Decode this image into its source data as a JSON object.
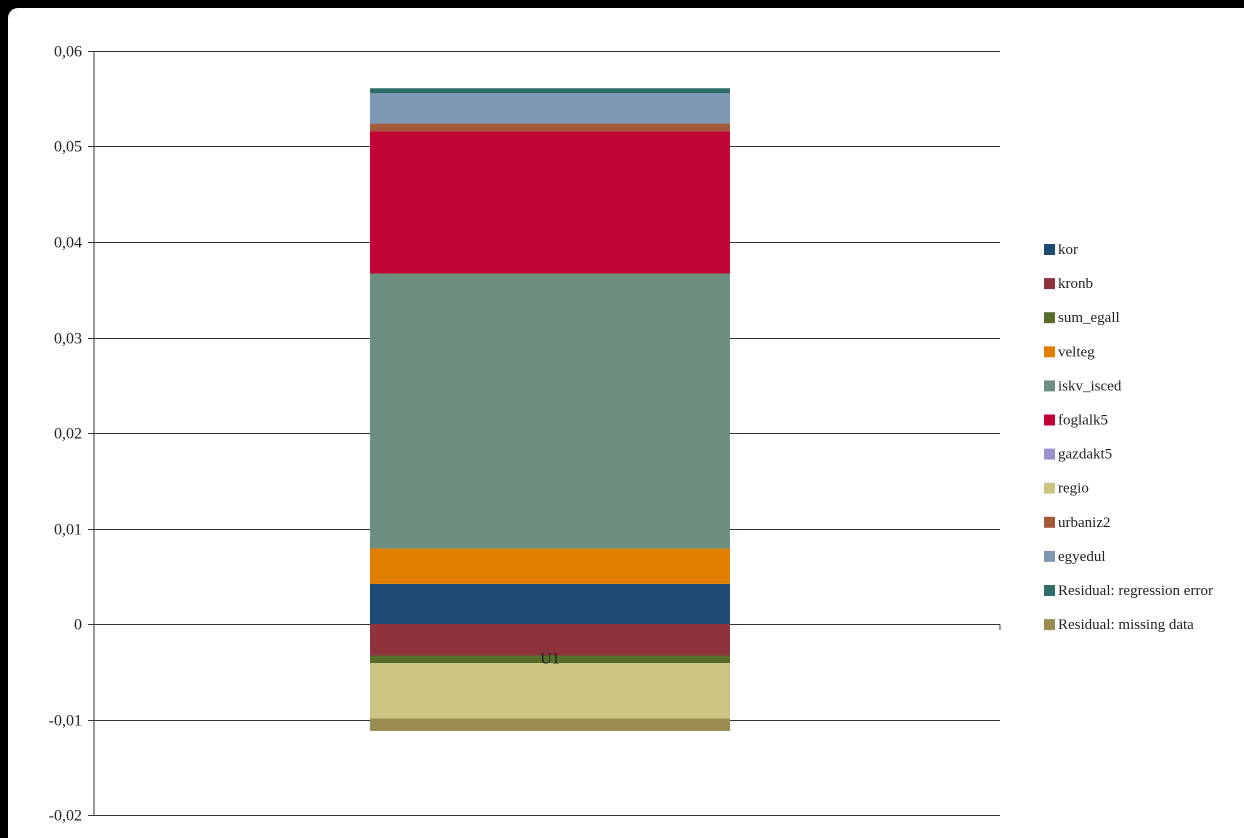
{
  "chart_data": {
    "type": "bar",
    "stacked": true,
    "categories": [
      "U1"
    ],
    "ylim": [
      -0.02,
      0.06
    ],
    "yticks": [
      -0.02,
      -0.01,
      0,
      0.01,
      0.02,
      0.03,
      0.04,
      0.05,
      0.06
    ],
    "ytick_labels": [
      "-0,02",
      "-0,01",
      "0",
      "0,01",
      "0,02",
      "0,03",
      "0,04",
      "0,05",
      "0,06"
    ],
    "grid": true,
    "legend_position": "right",
    "series": [
      {
        "name": "kor",
        "color": "#1F4A73",
        "values": [
          0.0042
        ]
      },
      {
        "name": "kronb",
        "color": "#8E333B",
        "values": [
          -0.0033
        ]
      },
      {
        "name": "sum_egall",
        "color": "#566E2A",
        "values": [
          -0.0008
        ]
      },
      {
        "name": "velteg",
        "color": "#E07F00",
        "values": [
          0.0037
        ]
      },
      {
        "name": "iskv_isced",
        "color": "#6E8F80",
        "values": [
          0.0288
        ]
      },
      {
        "name": "foglalk5",
        "color": "#C00535",
        "values": [
          0.0149
        ]
      },
      {
        "name": "gazdakt5",
        "color": "#9C91CF",
        "values": [
          0.0
        ]
      },
      {
        "name": "regio",
        "color": "#CCC482",
        "values": [
          -0.0058
        ]
      },
      {
        "name": "urbaniz2",
        "color": "#A25A3A",
        "values": [
          0.0008
        ]
      },
      {
        "name": "egyedul",
        "color": "#7E98B3",
        "values": [
          0.0032
        ]
      },
      {
        "name": "Residual: regression error",
        "color": "#2D6E6A",
        "values": [
          0.0005
        ]
      },
      {
        "name": "Residual: missing data",
        "color": "#9A8C50",
        "values": [
          -0.0013
        ]
      }
    ]
  }
}
